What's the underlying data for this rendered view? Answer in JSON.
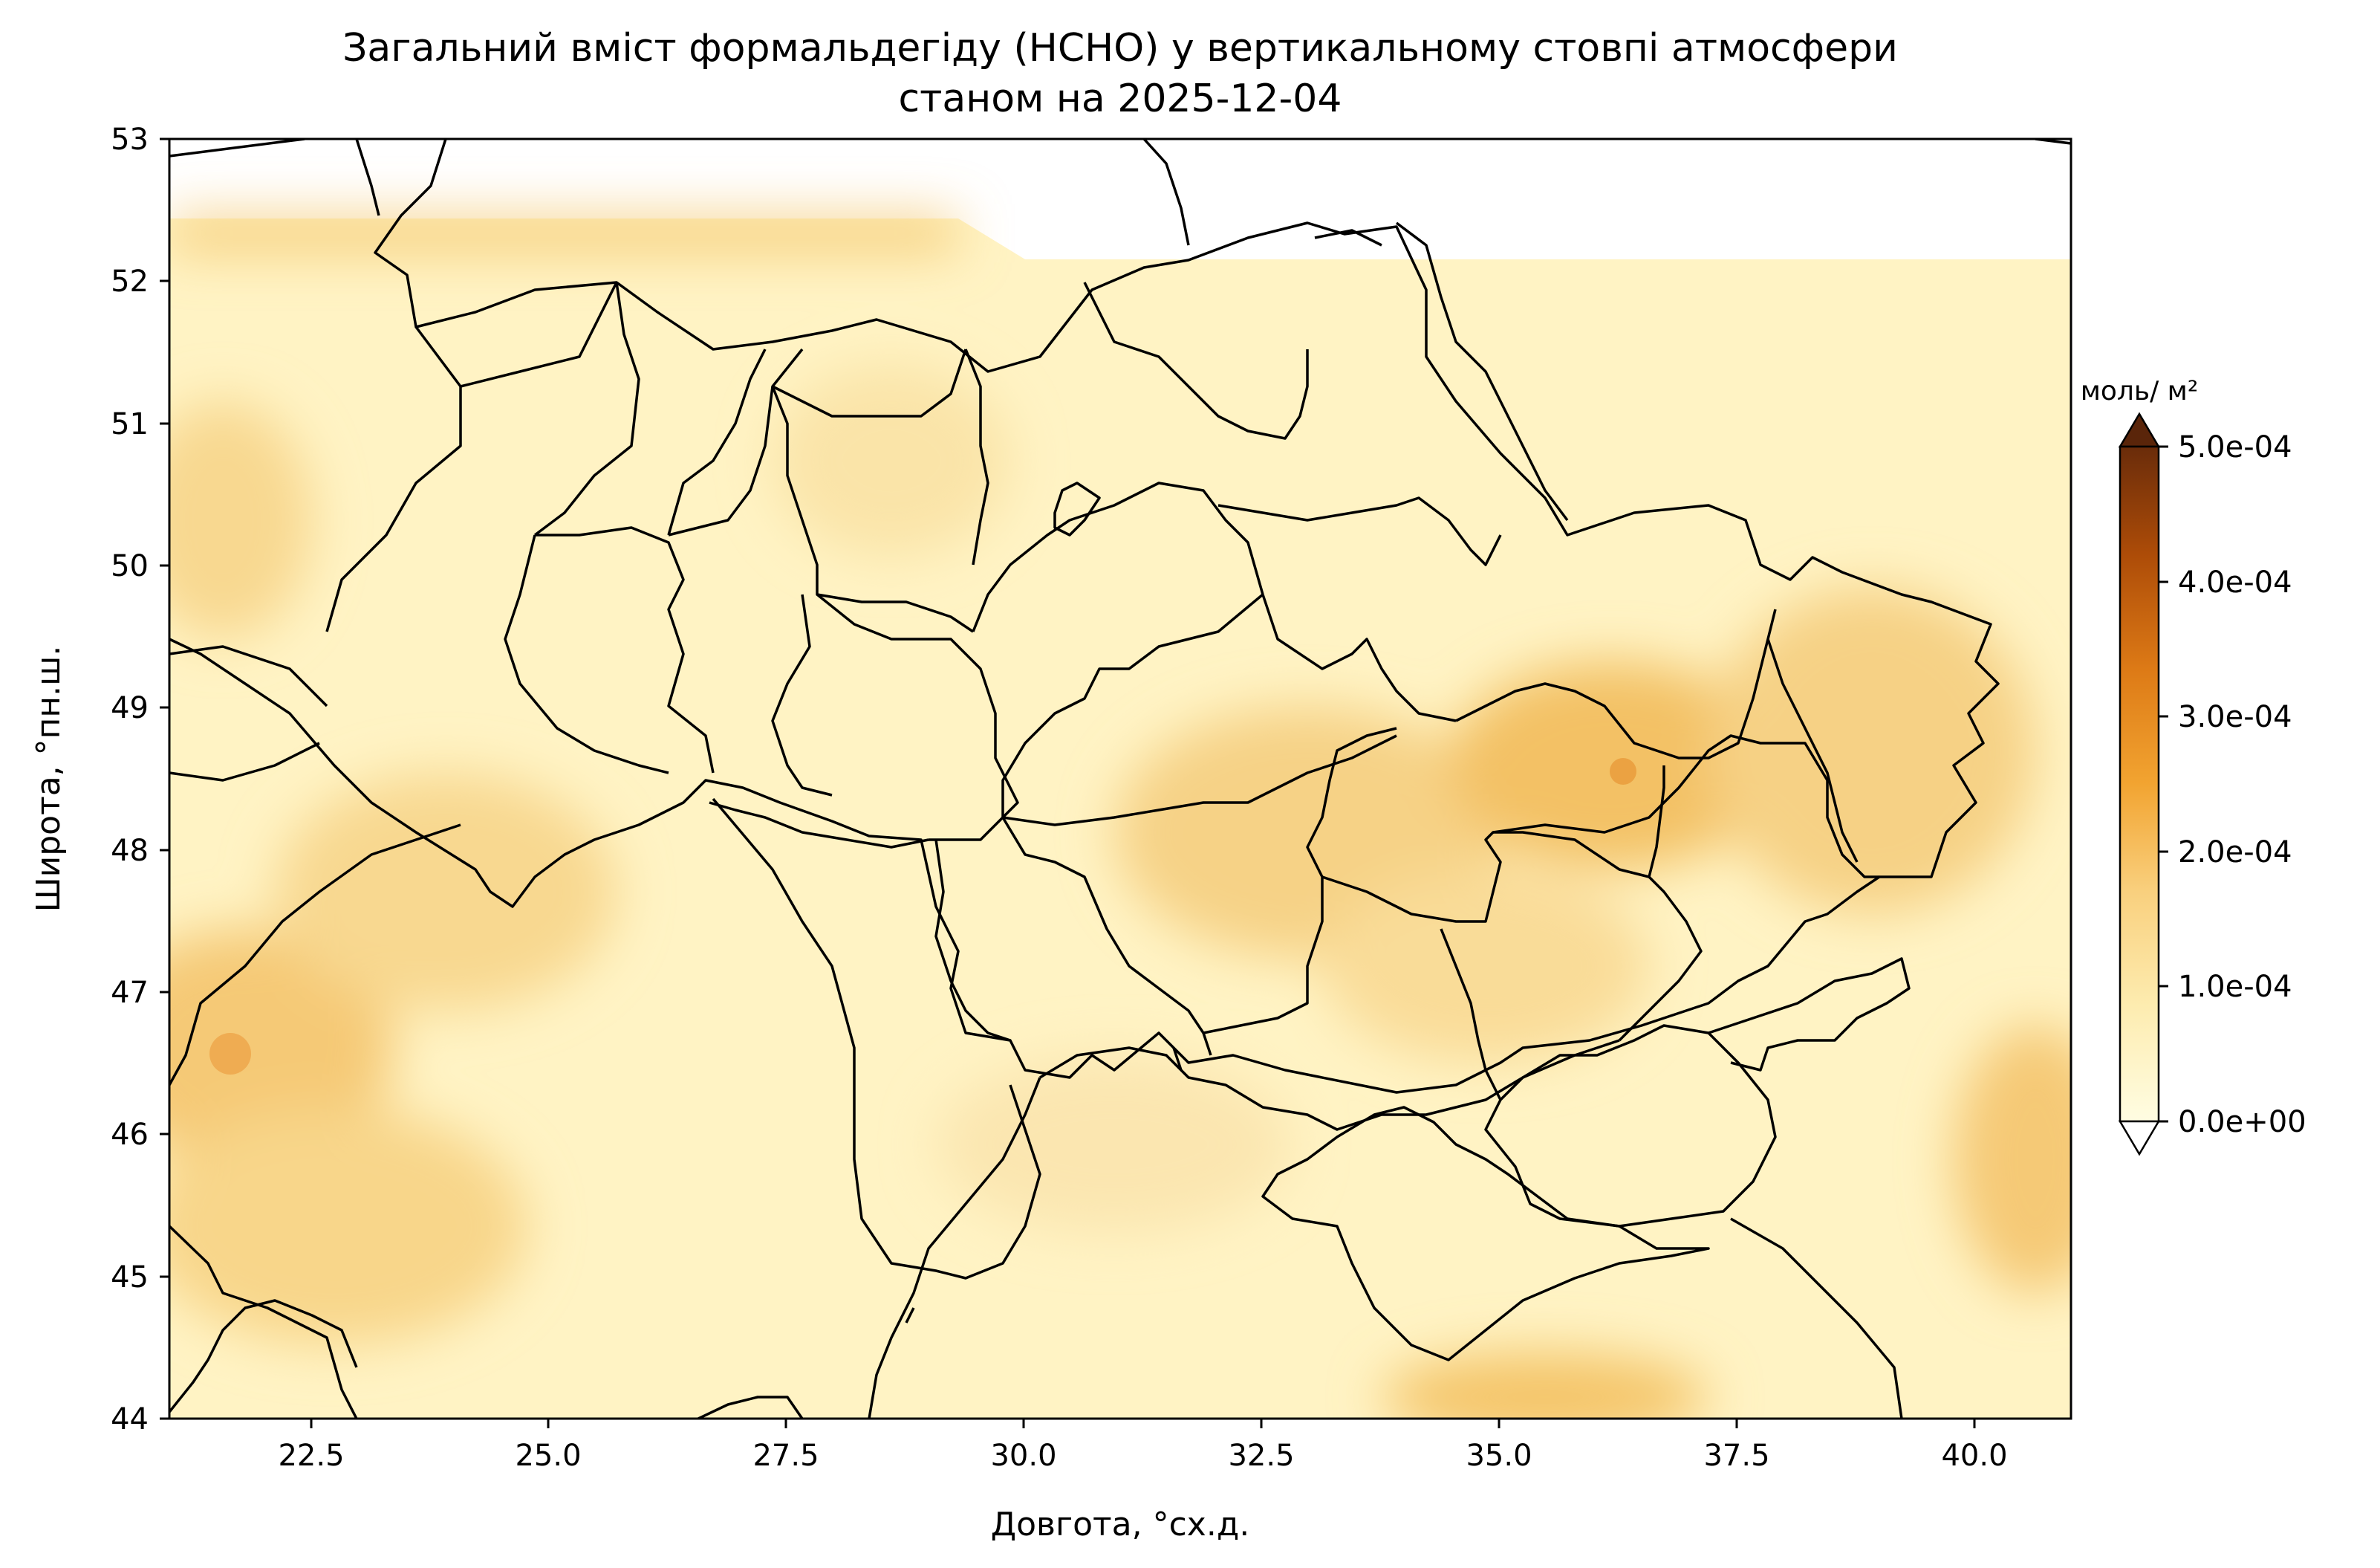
{
  "title_line1": "Загальний вміст формальдегіду (HCHO) у вертикальному стовпі атмосфери",
  "title_line2": "станом на 2025-12-04",
  "xlabel": "Довгота, °сх.д.",
  "ylabel": "Широта, °пн.ш.",
  "x_ticks": [
    "22.5",
    "25.0",
    "27.5",
    "30.0",
    "32.5",
    "35.0",
    "37.5",
    "40.0"
  ],
  "y_ticks": [
    "44",
    "45",
    "46",
    "47",
    "48",
    "49",
    "50",
    "51",
    "52",
    "53"
  ],
  "colorbar": {
    "unit": "моль/ м²",
    "ticks": [
      "0.0e+00",
      "1.0e-04",
      "2.0e-04",
      "3.0e-04",
      "4.0e-04",
      "5.0e-04"
    ],
    "colors": [
      "#fffde2",
      "#fdecb0",
      "#f9d07e",
      "#f2a431",
      "#dd7a16",
      "#ad4c08",
      "#6a2c0a"
    ],
    "over_color": "#5a250a",
    "under_color": "#ffffff"
  },
  "chart_data": {
    "type": "heatmap",
    "variable": "HCHO",
    "units": "моль/ м²",
    "xlim": [
      21,
      41
    ],
    "ylim": [
      44,
      53
    ],
    "clim": [
      0,
      0.0005
    ],
    "colormap": "YlOrBr",
    "regional_values": [
      {
        "lon": 21.8,
        "lat": 46.6,
        "value": 0.00022
      },
      {
        "lon": 33.5,
        "lat": 48.2,
        "value": 0.00014
      },
      {
        "lon": 36.3,
        "lat": 48.5,
        "value": 0.00018
      },
      {
        "lon": 39.2,
        "lat": 48.8,
        "value": 0.00013
      },
      {
        "lon": 35.6,
        "lat": 44.2,
        "value": 0.00017
      },
      {
        "lon": 40.8,
        "lat": 45.8,
        "value": 0.00016
      },
      {
        "lon": 23.0,
        "lat": 52.4,
        "value": 0.00012
      },
      {
        "lon": 27.0,
        "lat": 48.5,
        "value": 6e-05
      },
      {
        "lon": 30.0,
        "lat": 46.0,
        "value": 5e-05
      }
    ]
  }
}
